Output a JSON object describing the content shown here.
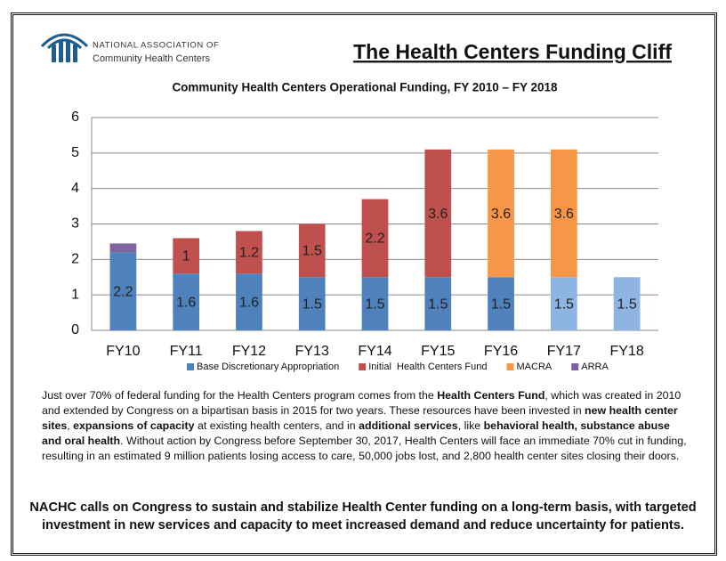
{
  "header": {
    "org_line1": "NATIONAL ASSOCIATION OF",
    "org_line2": "Community Health Centers",
    "title": "The Health Centers Funding Cliff"
  },
  "chart_data": {
    "type": "stacked_bar",
    "title": "Community Health Centers Operational Funding, FY 2010 – FY 2018",
    "categories": [
      "FY10",
      "FY11",
      "FY12",
      "FY13",
      "FY14",
      "FY15",
      "FY16",
      "FY17",
      "FY18"
    ],
    "series": [
      {
        "name": "Base Discretionary Appropriation",
        "color": "#4F81BD",
        "point_colors": [
          "#4F81BD",
          "#4F81BD",
          "#4F81BD",
          "#4F81BD",
          "#4F81BD",
          "#4F81BD",
          "#4F81BD",
          "#8DB4E2",
          "#8DB4E2"
        ],
        "show_labels": true,
        "values": [
          2.2,
          1.6,
          1.6,
          1.5,
          1.5,
          1.5,
          1.5,
          1.5,
          1.5
        ]
      },
      {
        "name": "Initial  Health Centers Fund",
        "color": "#C0504D",
        "show_labels": true,
        "values": [
          null,
          1,
          1.2,
          1.5,
          2.2,
          3.6,
          null,
          null,
          null
        ]
      },
      {
        "name": "MACRA",
        "color": "#F79646",
        "show_labels": true,
        "values": [
          null,
          null,
          null,
          null,
          null,
          null,
          3.6,
          3.6,
          null
        ]
      },
      {
        "name": "ARRA",
        "color": "#8064A2",
        "show_labels": false,
        "values": [
          0.25,
          null,
          null,
          null,
          null,
          null,
          null,
          null,
          null
        ]
      }
    ],
    "ylim": [
      0,
      6
    ],
    "yticks": [
      0,
      1,
      2,
      3,
      4,
      5,
      6
    ],
    "grid": true,
    "legend": "bottom"
  },
  "body": {
    "paragraph": [
      {
        "text": "Just over 70% of federal funding for the Health Centers program comes from the ",
        "bold": false
      },
      {
        "text": "Health Centers Fund",
        "bold": true
      },
      {
        "text": ", which was created in 2010 and extended by Congress on a bipartisan basis in 2015 for two years. These resources have been invested in ",
        "bold": false
      },
      {
        "text": "new health center sites",
        "bold": true
      },
      {
        "text": ", ",
        "bold": false
      },
      {
        "text": "expansions of capacity",
        "bold": true
      },
      {
        "text": " at existing health centers, and in ",
        "bold": false
      },
      {
        "text": "additional services",
        "bold": true
      },
      {
        "text": ", like ",
        "bold": false
      },
      {
        "text": "behavioral health, substance abuse and oral health",
        "bold": true
      },
      {
        "text": ". Without action by Congress before September 30, 2017, Health Centers will face an immediate 70% cut in funding, resulting in an estimated 9 million patients losing access to care, 50,000 jobs lost, and 2,800 health center sites closing their doors.",
        "bold": false
      }
    ],
    "closing": "NACHC calls on Congress to sustain and stabilize Health Center funding on a long-term basis, with targeted investment in new services and capacity to meet increased demand and reduce uncertainty for patients."
  }
}
